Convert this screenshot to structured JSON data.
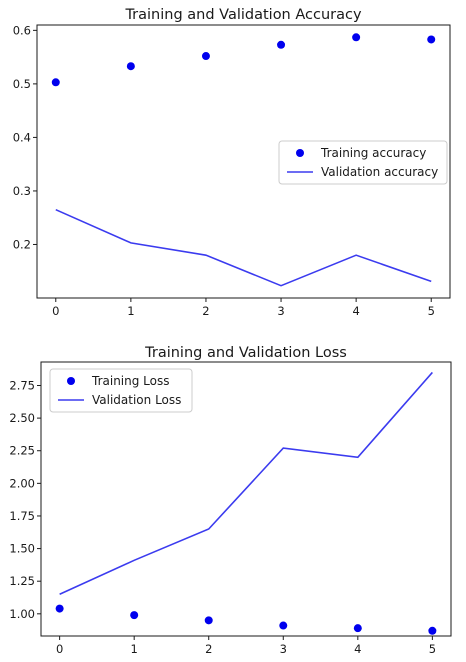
{
  "chart_data": [
    {
      "type": "line",
      "title": "Training and Validation Accuracy",
      "xlabel": "",
      "ylabel": "",
      "x": [
        0,
        1,
        2,
        3,
        4,
        5
      ],
      "xlim": [
        -0.25,
        5.25
      ],
      "ylim": [
        0.1,
        0.61
      ],
      "xticks": [
        0,
        1,
        2,
        3,
        4,
        5
      ],
      "yticks": [
        0.2,
        0.3,
        0.4,
        0.5,
        0.6
      ],
      "ytick_labels": [
        "0.2",
        "0.3",
        "0.4",
        "0.5",
        "0.6"
      ],
      "grid": false,
      "legend_position": "center-right",
      "series": [
        {
          "name": "Training accuracy",
          "style": "markers",
          "color": "#0000ee",
          "values": [
            0.503,
            0.533,
            0.552,
            0.573,
            0.587,
            0.583
          ]
        },
        {
          "name": "Validation accuracy",
          "style": "line",
          "color": "#3b3bef",
          "values": [
            0.265,
            0.203,
            0.18,
            0.123,
            0.18,
            0.131
          ]
        }
      ]
    },
    {
      "type": "line",
      "title": "Training and Validation Loss",
      "xlabel": "",
      "ylabel": "",
      "x": [
        0,
        1,
        2,
        3,
        4,
        5
      ],
      "xlim": [
        -0.25,
        5.25
      ],
      "ylim": [
        0.83,
        2.93
      ],
      "xticks": [
        0,
        1,
        2,
        3,
        4,
        5
      ],
      "yticks": [
        1.0,
        1.25,
        1.5,
        1.75,
        2.0,
        2.25,
        2.5,
        2.75
      ],
      "ytick_labels": [
        "1.00",
        "1.25",
        "1.50",
        "1.75",
        "2.00",
        "2.25",
        "2.50",
        "2.75"
      ],
      "grid": false,
      "legend_position": "top-left",
      "series": [
        {
          "name": "Training Loss",
          "style": "markers",
          "color": "#0000ee",
          "values": [
            1.04,
            0.99,
            0.95,
            0.91,
            0.89,
            0.87
          ]
        },
        {
          "name": "Validation Loss",
          "style": "line",
          "color": "#3b3bef",
          "values": [
            1.15,
            1.41,
            1.65,
            2.27,
            2.2,
            2.85
          ]
        }
      ]
    }
  ]
}
